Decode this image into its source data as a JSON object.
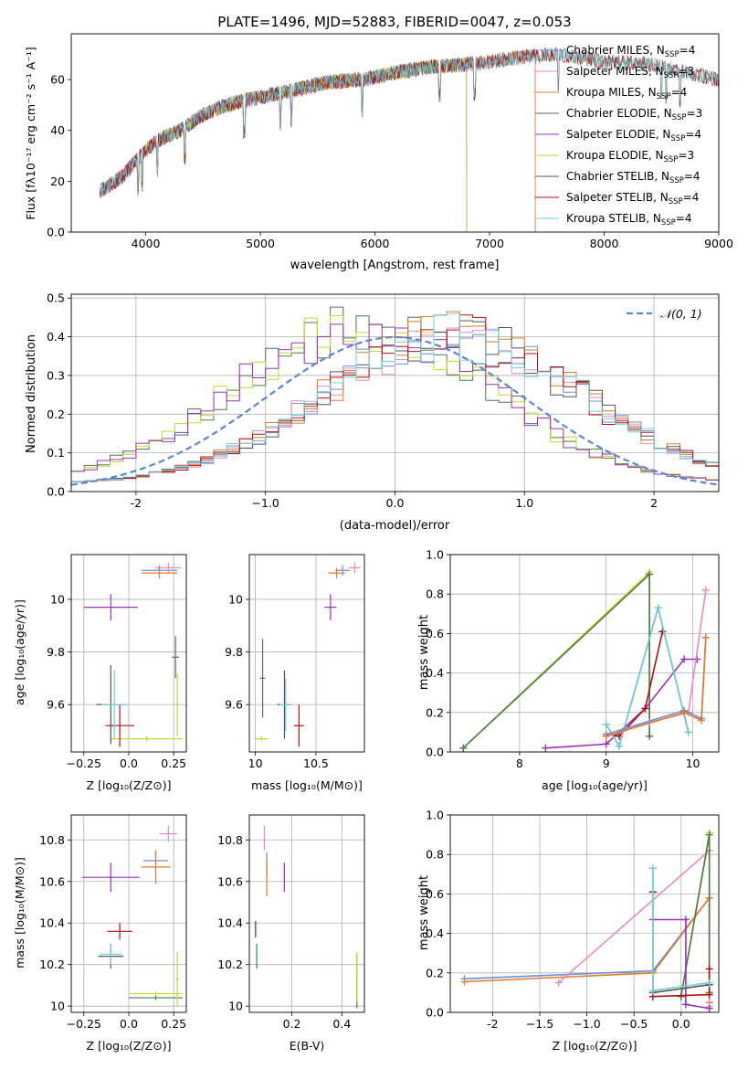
{
  "figure_title": "PLATE=1496, MJD=52883, FIBERID=0047, z=0.053",
  "colors": {
    "Chabrier MILES": "#6a8fd8",
    "Salpeter MILES": "#e88ac2",
    "Kroupa MILES": "#e07b2a",
    "Chabrier ELODIE": "#4a7a4a",
    "Salpeter ELODIE": "#9b30c0",
    "Kroupa ELODIE": "#c7d92a",
    "Chabrier STELIB": "#555555",
    "Salpeter STELIB": "#b01010",
    "Kroupa STELIB": "#6fd0d8",
    "normal": "#5b86d6"
  },
  "chart_data": [
    {
      "id": "spectrum",
      "type": "line",
      "xlabel": "wavelength [Angstrom, rest frame]",
      "ylabel": "Flux [fλ10⁻¹⁷ erg cm⁻² s⁻¹ A⁻¹]",
      "xlim": [
        3350,
        9000
      ],
      "ylim": [
        0,
        78
      ],
      "xticks": [
        4000,
        5000,
        6000,
        7000,
        8000,
        9000
      ],
      "yticks": [
        0,
        20,
        40,
        60
      ],
      "grid": false,
      "legend_position": "upper-right",
      "legend": [
        {
          "label": "Chabrier MILES, N",
          "sub": "SSP",
          "tail": "=4",
          "series": "Chabrier MILES"
        },
        {
          "label": "Salpeter MILES, N",
          "sub": "SSP",
          "tail": "=3",
          "series": "Salpeter MILES"
        },
        {
          "label": "Kroupa MILES, N",
          "sub": "SSP",
          "tail": "=4",
          "series": "Kroupa MILES"
        },
        {
          "label": "Chabrier ELODIE, N",
          "sub": "SSP",
          "tail": "=3",
          "series": "Chabrier ELODIE"
        },
        {
          "label": "Salpeter ELODIE, N",
          "sub": "SSP",
          "tail": "=4",
          "series": "Salpeter ELODIE"
        },
        {
          "label": "Kroupa ELODIE, N",
          "sub": "SSP",
          "tail": "=3",
          "series": "Kroupa ELODIE"
        },
        {
          "label": "Chabrier STELIB, N",
          "sub": "SSP",
          "tail": "=4",
          "series": "Chabrier STELIB"
        },
        {
          "label": "Salpeter STELIB, N",
          "sub": "SSP",
          "tail": "=4",
          "series": "Salpeter STELIB"
        },
        {
          "label": "Kroupa STELIB, N",
          "sub": "SSP",
          "tail": "=4",
          "series": "Kroupa STELIB"
        }
      ],
      "continuum_knots": [
        [
          3600,
          16
        ],
        [
          3800,
          22
        ],
        [
          3950,
          30
        ],
        [
          4100,
          36
        ],
        [
          4300,
          40
        ],
        [
          4500,
          46
        ],
        [
          4700,
          50
        ],
        [
          5000,
          53
        ],
        [
          5300,
          56
        ],
        [
          5600,
          59
        ],
        [
          5900,
          60
        ],
        [
          6200,
          63
        ],
        [
          6500,
          65
        ],
        [
          6800,
          66
        ],
        [
          7000,
          67
        ],
        [
          7300,
          69
        ],
        [
          7600,
          70
        ],
        [
          8000,
          67
        ],
        [
          8400,
          66
        ],
        [
          8800,
          62
        ],
        [
          9000,
          60
        ]
      ],
      "series_ranges": {
        "Chabrier MILES": [
          3600,
          7400
        ],
        "Salpeter MILES": [
          3600,
          7400
        ],
        "Kroupa MILES": [
          3600,
          7400
        ],
        "Chabrier ELODIE": [
          3600,
          6800
        ],
        "Salpeter ELODIE": [
          3600,
          6800
        ],
        "Kroupa ELODIE": [
          3900,
          6800
        ],
        "Chabrier STELIB": [
          3600,
          9000
        ],
        "Salpeter STELIB": [
          3600,
          9000
        ],
        "Kroupa STELIB": [
          3600,
          9000
        ]
      }
    },
    {
      "id": "residuals",
      "type": "histogram",
      "xlabel": "(data-model)/error",
      "ylabel": "Normed distribution",
      "xlim": [
        -2.5,
        2.5
      ],
      "ylim": [
        0,
        0.51
      ],
      "xticks": [
        -2,
        -1,
        0,
        1,
        2
      ],
      "yticks": [
        0.0,
        0.1,
        0.2,
        0.3,
        0.4,
        0.5
      ],
      "grid": true,
      "legend_position": "upper-right",
      "legend": [
        {
          "label": "𝒩(0, 1)",
          "series": "normal"
        }
      ],
      "groups": [
        {
          "shift": -0.25,
          "scale": 1.0,
          "series": [
            "Chabrier ELODIE",
            "Kroupa ELODIE",
            "Salpeter ELODIE"
          ]
        },
        {
          "shift": 0.45,
          "scale": 0.95,
          "series": [
            "Chabrier MILES",
            "Salpeter MILES",
            "Kroupa MILES",
            "Chabrier STELIB",
            "Salpeter STELIB",
            "Kroupa STELIB"
          ]
        }
      ]
    },
    {
      "id": "age_vs_Z",
      "type": "errorbar",
      "xlabel": "Z [log₁₀(Z/Z⊙)]",
      "ylabel": "age  [log₁₀(age/yr)]",
      "xlim": [
        -0.32,
        0.32
      ],
      "ylim": [
        9.42,
        10.17
      ],
      "xticks": [
        -0.25,
        0.0,
        0.25
      ],
      "yticks": [
        9.6,
        9.8,
        10.0
      ],
      "points": [
        {
          "series": "Chabrier MILES",
          "x": 0.17,
          "y": 10.11,
          "xerr": 0.1,
          "yerr": 0.02
        },
        {
          "series": "Salpeter MILES",
          "x": 0.22,
          "y": 10.12,
          "xerr": 0.07,
          "yerr": 0.02
        },
        {
          "series": "Kroupa MILES",
          "x": 0.17,
          "y": 10.1,
          "xerr": 0.1,
          "yerr": 0.02
        },
        {
          "series": "Chabrier ELODIE",
          "x": 0.26,
          "y": 9.78,
          "xerr": 0.02,
          "yerr": 0.08
        },
        {
          "series": "Salpeter ELODIE",
          "x": -0.1,
          "y": 9.97,
          "xerr": 0.15,
          "yerr": 0.05
        },
        {
          "series": "Kroupa ELODIE",
          "x": 0.1,
          "y": 9.47,
          "xerr": 0.2,
          "yerr": 0.01
        },
        {
          "series": "Chabrier STELIB",
          "x": -0.1,
          "y": 9.6,
          "xerr": 0.08,
          "yerr": 0.15
        },
        {
          "series": "Salpeter STELIB",
          "x": -0.05,
          "y": 9.52,
          "xerr": 0.08,
          "yerr": 0.08
        },
        {
          "series": "Kroupa STELIB",
          "x": -0.08,
          "y": 9.6,
          "xerr": 0.07,
          "yerr": 0.13
        },
        {
          "series": "Kroupa ELODIE",
          "x": 0.27,
          "y": 9.6,
          "xerr": 0.01,
          "yerr": 0.12
        }
      ]
    },
    {
      "id": "age_vs_mass",
      "type": "errorbar",
      "xlabel": "mass [log₁₀(M/M⊙)]",
      "ylabel": "",
      "xlim": [
        9.95,
        10.9
      ],
      "ylim": [
        9.42,
        10.17
      ],
      "xticks": [
        10.0,
        10.5
      ],
      "yticks": [
        9.6,
        9.8,
        10.0
      ],
      "points": [
        {
          "series": "Chabrier MILES",
          "x": 10.72,
          "y": 10.11,
          "xerr": 0.06,
          "yerr": 0.02
        },
        {
          "series": "Salpeter MILES",
          "x": 10.82,
          "y": 10.12,
          "xerr": 0.05,
          "yerr": 0.02
        },
        {
          "series": "Kroupa MILES",
          "x": 10.67,
          "y": 10.1,
          "xerr": 0.07,
          "yerr": 0.02
        },
        {
          "series": "Chabrier ELODIE",
          "x": 10.06,
          "y": 9.7,
          "xerr": 0.02,
          "yerr": 0.15
        },
        {
          "series": "Salpeter ELODIE",
          "x": 10.62,
          "y": 9.97,
          "xerr": 0.05,
          "yerr": 0.05
        },
        {
          "series": "Kroupa ELODIE",
          "x": 10.05,
          "y": 9.47,
          "xerr": 0.06,
          "yerr": 0.01
        },
        {
          "series": "Chabrier STELIB",
          "x": 10.24,
          "y": 9.6,
          "xerr": 0.06,
          "yerr": 0.13
        },
        {
          "series": "Salpeter STELIB",
          "x": 10.36,
          "y": 9.52,
          "xerr": 0.04,
          "yerr": 0.08
        },
        {
          "series": "Kroupa STELIB",
          "x": 10.25,
          "y": 9.6,
          "xerr": 0.05,
          "yerr": 0.1
        }
      ]
    },
    {
      "id": "weight_vs_age",
      "type": "line",
      "xlabel": "age  [log₁₀(age/yr)]",
      "ylabel": "mass weight",
      "xlim": [
        7.2,
        10.3
      ],
      "ylim": [
        0,
        1.0
      ],
      "xticks": [
        8,
        9,
        10
      ],
      "yticks": [
        0.0,
        0.2,
        0.4,
        0.6,
        0.8,
        1.0
      ],
      "series": [
        {
          "name": "Kroupa ELODIE",
          "x": [
            7.35,
            9.5,
            9.5
          ],
          "y": [
            0.02,
            0.91,
            0.08
          ]
        },
        {
          "name": "Chabrier ELODIE",
          "x": [
            7.35,
            9.5,
            9.5
          ],
          "y": [
            0.02,
            0.9,
            0.08
          ]
        },
        {
          "name": "Salpeter ELODIE",
          "x": [
            8.3,
            9.0,
            9.45,
            9.9,
            10.05
          ],
          "y": [
            0.02,
            0.04,
            0.22,
            0.47,
            0.47
          ]
        },
        {
          "name": "Salpeter STELIB",
          "x": [
            9.0,
            9.15,
            9.45,
            9.65
          ],
          "y": [
            0.09,
            0.08,
            0.22,
            0.61
          ]
        },
        {
          "name": "Chabrier STELIB",
          "x": [
            9.0,
            9.15,
            9.6,
            9.95
          ],
          "y": [
            0.14,
            0.03,
            0.73,
            0.1
          ]
        },
        {
          "name": "Kroupa STELIB",
          "x": [
            9.0,
            9.15,
            9.6,
            9.95
          ],
          "y": [
            0.14,
            0.03,
            0.73,
            0.1
          ]
        },
        {
          "name": "Salpeter MILES",
          "x": [
            9.0,
            9.5,
            9.95,
            10.15
          ],
          "y": [
            0.08,
            0.15,
            0.2,
            0.82
          ]
        },
        {
          "name": "Chabrier MILES",
          "x": [
            9.0,
            9.9,
            10.1,
            10.15
          ],
          "y": [
            0.09,
            0.21,
            0.17,
            0.58
          ]
        },
        {
          "name": "Kroupa MILES",
          "x": [
            9.0,
            9.9,
            10.1,
            10.15
          ],
          "y": [
            0.08,
            0.2,
            0.16,
            0.58
          ]
        }
      ]
    },
    {
      "id": "mass_vs_Z",
      "type": "errorbar",
      "xlabel": "Z [log₁₀(Z/Z⊙)]",
      "ylabel": "mass [log₁₀(M/M⊙)]",
      "xlim": [
        -0.32,
        0.32
      ],
      "ylim": [
        9.97,
        10.92
      ],
      "xticks": [
        -0.25,
        0.0,
        0.25
      ],
      "yticks": [
        10.0,
        10.2,
        10.4,
        10.6,
        10.8
      ],
      "points": [
        {
          "series": "Chabrier MILES",
          "x": 0.15,
          "y": 10.7,
          "xerr": 0.07,
          "yerr": 0.05
        },
        {
          "series": "Salpeter MILES",
          "x": 0.22,
          "y": 10.83,
          "xerr": 0.05,
          "yerr": 0.04
        },
        {
          "series": "Kroupa MILES",
          "x": 0.15,
          "y": 10.67,
          "xerr": 0.08,
          "yerr": 0.08
        },
        {
          "series": "Chabrier ELODIE",
          "x": 0.15,
          "y": 10.04,
          "xerr": 0.15,
          "yerr": 0.01
        },
        {
          "series": "Salpeter ELODIE",
          "x": -0.1,
          "y": 10.62,
          "xerr": 0.16,
          "yerr": 0.07
        },
        {
          "series": "Kroupa ELODIE",
          "x": 0.15,
          "y": 10.06,
          "xerr": 0.15,
          "yerr": 0.01
        },
        {
          "series": "Chabrier STELIB",
          "x": -0.1,
          "y": 10.24,
          "xerr": 0.07,
          "yerr": 0.06
        },
        {
          "series": "Salpeter STELIB",
          "x": -0.05,
          "y": 10.36,
          "xerr": 0.07,
          "yerr": 0.04
        },
        {
          "series": "Kroupa STELIB",
          "x": -0.1,
          "y": 10.25,
          "xerr": 0.06,
          "yerr": 0.05
        },
        {
          "series": "Kroupa ELODIE",
          "x": 0.27,
          "y": 10.13,
          "xerr": 0.01,
          "yerr": 0.13
        }
      ]
    },
    {
      "id": "mass_vs_ebv",
      "type": "errorbar",
      "xlabel": "E(B-V)",
      "ylabel": "",
      "xlim": [
        0.03,
        0.49
      ],
      "ylim": [
        9.97,
        10.92
      ],
      "xticks": [
        0.2,
        0.4
      ],
      "yticks": [
        10.0,
        10.2,
        10.4,
        10.6,
        10.8
      ],
      "points": [
        {
          "series": "Chabrier MILES",
          "x": 0.1,
          "y": 10.68,
          "xerr": 0,
          "yerr": 0.06
        },
        {
          "series": "Salpeter MILES",
          "x": 0.09,
          "y": 10.81,
          "xerr": 0,
          "yerr": 0.06
        },
        {
          "series": "Kroupa MILES",
          "x": 0.1,
          "y": 10.62,
          "xerr": 0,
          "yerr": 0.09
        },
        {
          "series": "Chabrier ELODIE",
          "x": 0.46,
          "y": 10.12,
          "xerr": 0,
          "yerr": 0.13
        },
        {
          "series": "Salpeter ELODIE",
          "x": 0.17,
          "y": 10.62,
          "xerr": 0,
          "yerr": 0.07
        },
        {
          "series": "Kroupa ELODIE",
          "x": 0.46,
          "y": 10.14,
          "xerr": 0,
          "yerr": 0.12
        },
        {
          "series": "Chabrier STELIB",
          "x": 0.06,
          "y": 10.24,
          "xerr": 0,
          "yerr": 0.06
        },
        {
          "series": "Salpeter STELIB",
          "x": 0.055,
          "y": 10.37,
          "xerr": 0,
          "yerr": 0.04
        },
        {
          "series": "Kroupa STELIB",
          "x": 0.058,
          "y": 10.25,
          "xerr": 0,
          "yerr": 0.05
        }
      ]
    },
    {
      "id": "weight_vs_Z",
      "type": "line",
      "xlabel": "Z [log₁₀(Z/Z⊙)]",
      "ylabel": "mass weight",
      "xlim": [
        -2.45,
        0.4
      ],
      "ylim": [
        0,
        1.0
      ],
      "xticks": [
        -2.0,
        -1.5,
        -1.0,
        -0.5,
        0.0
      ],
      "yticks": [
        0.0,
        0.2,
        0.4,
        0.6,
        0.8,
        1.0
      ],
      "series": [
        {
          "name": "Chabrier MILES",
          "x": [
            -2.3,
            -0.3,
            0.3,
            0.3
          ],
          "y": [
            0.17,
            0.21,
            0.58,
            0.05
          ]
        },
        {
          "name": "Kroupa MILES",
          "x": [
            -2.3,
            -0.3,
            0.3,
            0.3
          ],
          "y": [
            0.155,
            0.2,
            0.58,
            0.05
          ]
        },
        {
          "name": "Salpeter MILES",
          "x": [
            -1.3,
            0.3,
            0.3
          ],
          "y": [
            0.15,
            0.82,
            0.03
          ]
        },
        {
          "name": "Kroupa ELODIE",
          "x": [
            0.0,
            0.3,
            0.3
          ],
          "y": [
            0.08,
            0.91,
            0.1
          ]
        },
        {
          "name": "Chabrier ELODIE",
          "x": [
            0.0,
            0.3,
            0.3
          ],
          "y": [
            0.08,
            0.9,
            0.1
          ]
        },
        {
          "name": "Salpeter ELODIE",
          "x": [
            -0.3,
            0.05,
            0.05,
            0.3
          ],
          "y": [
            0.47,
            0.47,
            0.04,
            0.02
          ]
        },
        {
          "name": "Salpeter STELIB",
          "x": [
            -0.3,
            -0.3,
            0.3,
            0.3
          ],
          "y": [
            0.61,
            0.08,
            0.09,
            0.22
          ]
        },
        {
          "name": "Chabrier STELIB",
          "x": [
            -0.3,
            -0.3,
            0.3
          ],
          "y": [
            0.73,
            0.1,
            0.14
          ]
        },
        {
          "name": "Kroupa STELIB",
          "x": [
            -0.3,
            -0.3,
            0.3
          ],
          "y": [
            0.73,
            0.11,
            0.15
          ]
        }
      ]
    }
  ]
}
